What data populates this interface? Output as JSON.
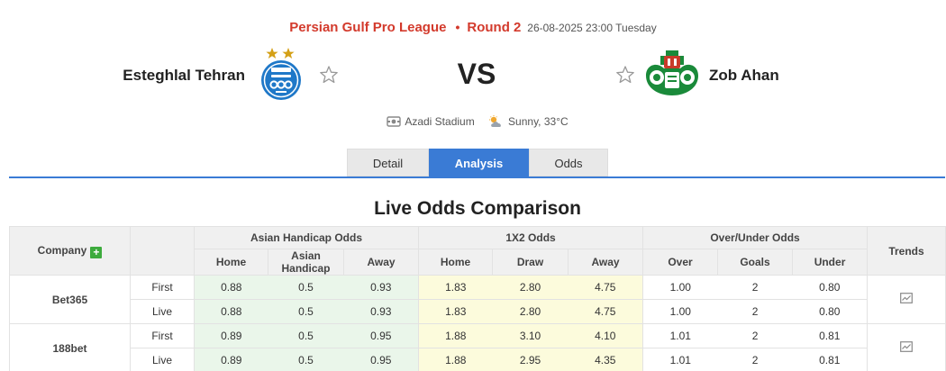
{
  "match": {
    "league": "Persian Gulf Pro League",
    "separator": "•",
    "round": "Round 2",
    "datetime": "26-08-2025 23:00 Tuesday",
    "home_team": "Esteghlal Tehran",
    "away_team": "Zob Ahan",
    "vs_label": "VS",
    "venue": "Azadi Stadium",
    "weather": "Sunny, 33°C"
  },
  "tabs": [
    {
      "label": "Detail",
      "active": false
    },
    {
      "label": "Analysis",
      "active": true
    },
    {
      "label": "Odds",
      "active": false
    }
  ],
  "section_title": "Live Odds Comparison",
  "table": {
    "company_header": "Company",
    "groups": [
      "Asian Handicap Odds",
      "1X2 Odds",
      "Over/Under Odds"
    ],
    "trends_header": "Trends",
    "subheaders": {
      "asian": [
        "Home",
        "Asian Handicap",
        "Away"
      ],
      "x12": [
        "Home",
        "Draw",
        "Away"
      ],
      "ou": [
        "Over",
        "Goals",
        "Under"
      ]
    },
    "rows": [
      {
        "company": "Bet365",
        "lines": [
          {
            "stage": "First",
            "asian": [
              "0.88",
              "0.5",
              "0.93"
            ],
            "x12": [
              "1.83",
              "2.80",
              "4.75"
            ],
            "ou": [
              "1.00",
              "2",
              "0.80"
            ]
          },
          {
            "stage": "Live",
            "asian": [
              "0.88",
              "0.5",
              "0.93"
            ],
            "x12": [
              "1.83",
              "2.80",
              "4.75"
            ],
            "ou": [
              "1.00",
              "2",
              "0.80"
            ]
          }
        ]
      },
      {
        "company": "188bet",
        "lines": [
          {
            "stage": "First",
            "asian": [
              "0.89",
              "0.5",
              "0.95"
            ],
            "x12": [
              "1.88",
              "3.10",
              "4.10"
            ],
            "ou": [
              "1.01",
              "2",
              "0.81"
            ]
          },
          {
            "stage": "Live",
            "asian": [
              "0.89",
              "0.5",
              "0.95"
            ],
            "x12": [
              "1.88",
              "2.95",
              "4.35"
            ],
            "ou": [
              "1.01",
              "2",
              "0.81"
            ]
          }
        ]
      }
    ]
  },
  "icons": {
    "favorite": "star-outline-icon",
    "stadium": "stadium-icon",
    "weather": "partly-sunny-icon",
    "add_company": "plus-icon",
    "trend": "trend-chart-icon"
  },
  "colors": {
    "accent_red": "#d33a2c",
    "tab_active": "#3a7bd5",
    "asian_bg": "#eaf6ea",
    "x12_bg": "#fcfbdc",
    "plus_green": "#3dab3d"
  }
}
